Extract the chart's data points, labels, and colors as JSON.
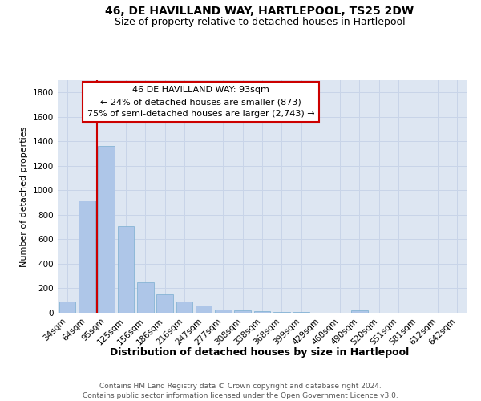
{
  "title": "46, DE HAVILLAND WAY, HARTLEPOOL, TS25 2DW",
  "subtitle": "Size of property relative to detached houses in Hartlepool",
  "xlabel": "Distribution of detached houses by size in Hartlepool",
  "ylabel": "Number of detached properties",
  "categories": [
    "34sqm",
    "64sqm",
    "95sqm",
    "125sqm",
    "156sqm",
    "186sqm",
    "216sqm",
    "247sqm",
    "277sqm",
    "308sqm",
    "338sqm",
    "368sqm",
    "399sqm",
    "429sqm",
    "460sqm",
    "490sqm",
    "520sqm",
    "551sqm",
    "581sqm",
    "612sqm",
    "642sqm"
  ],
  "values": [
    90,
    920,
    1360,
    710,
    250,
    148,
    90,
    58,
    25,
    20,
    10,
    8,
    5,
    3,
    0,
    18,
    3,
    0,
    0,
    0,
    0
  ],
  "bar_color": "#aec6e8",
  "bar_edge_color": "#7aaed0",
  "red_line_index": 2,
  "red_line_color": "#cc0000",
  "annotation_text": "46 DE HAVILLAND WAY: 93sqm\n← 24% of detached houses are smaller (873)\n75% of semi-detached houses are larger (2,743) →",
  "annotation_box_facecolor": "#ffffff",
  "annotation_box_edgecolor": "#cc0000",
  "ylim": [
    0,
    1900
  ],
  "yticks": [
    0,
    200,
    400,
    600,
    800,
    1000,
    1200,
    1400,
    1600,
    1800
  ],
  "grid_color": "#c8d4e8",
  "background_color": "#dde6f2",
  "footer_text": "Contains HM Land Registry data © Crown copyright and database right 2024.\nContains public sector information licensed under the Open Government Licence v3.0.",
  "title_fontsize": 10,
  "subtitle_fontsize": 9,
  "xlabel_fontsize": 9,
  "ylabel_fontsize": 8,
  "tick_fontsize": 7.5,
  "annotation_fontsize": 8,
  "footer_fontsize": 6.5
}
